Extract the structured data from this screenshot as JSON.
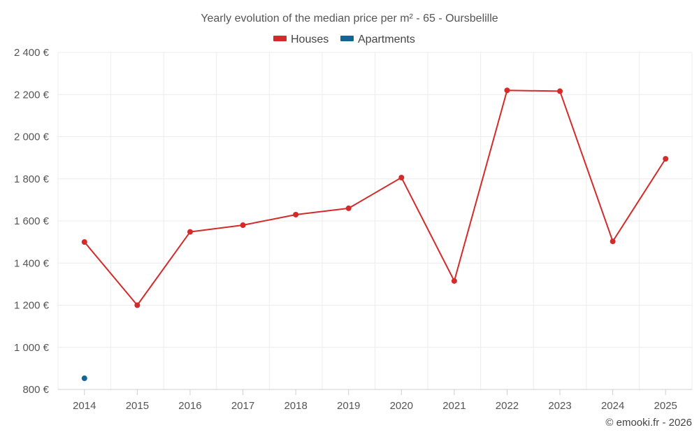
{
  "chart_data": {
    "type": "line",
    "title": "Yearly evolution of the median price per m² - 65 - Oursbelille",
    "categories": [
      "2014",
      "2015",
      "2016",
      "2017",
      "2018",
      "2019",
      "2020",
      "2021",
      "2022",
      "2023",
      "2024",
      "2025"
    ],
    "series": [
      {
        "name": "Houses",
        "color": "#d32a2a",
        "values": [
          1500,
          1200,
          1548,
          1580,
          1630,
          1660,
          1806,
          1315,
          2220,
          2216,
          1503,
          1895
        ]
      },
      {
        "name": "Apartments",
        "color": "#0e6699",
        "values": [
          853,
          null,
          null,
          null,
          null,
          null,
          null,
          null,
          null,
          null,
          null,
          null
        ]
      }
    ],
    "ylim": [
      800,
      2400
    ],
    "yticks": [
      800,
      1000,
      1200,
      1400,
      1600,
      1800,
      2000,
      2200,
      2400
    ],
    "ytick_labels": [
      "800 €",
      "1 000 €",
      "1 200 €",
      "1 400 €",
      "1 600 €",
      "1 800 €",
      "2 000 €",
      "2 200 €",
      "2 400 €"
    ],
    "legend_position": "top-center",
    "grid": true
  },
  "credit": "© emooki.fr - 2026"
}
